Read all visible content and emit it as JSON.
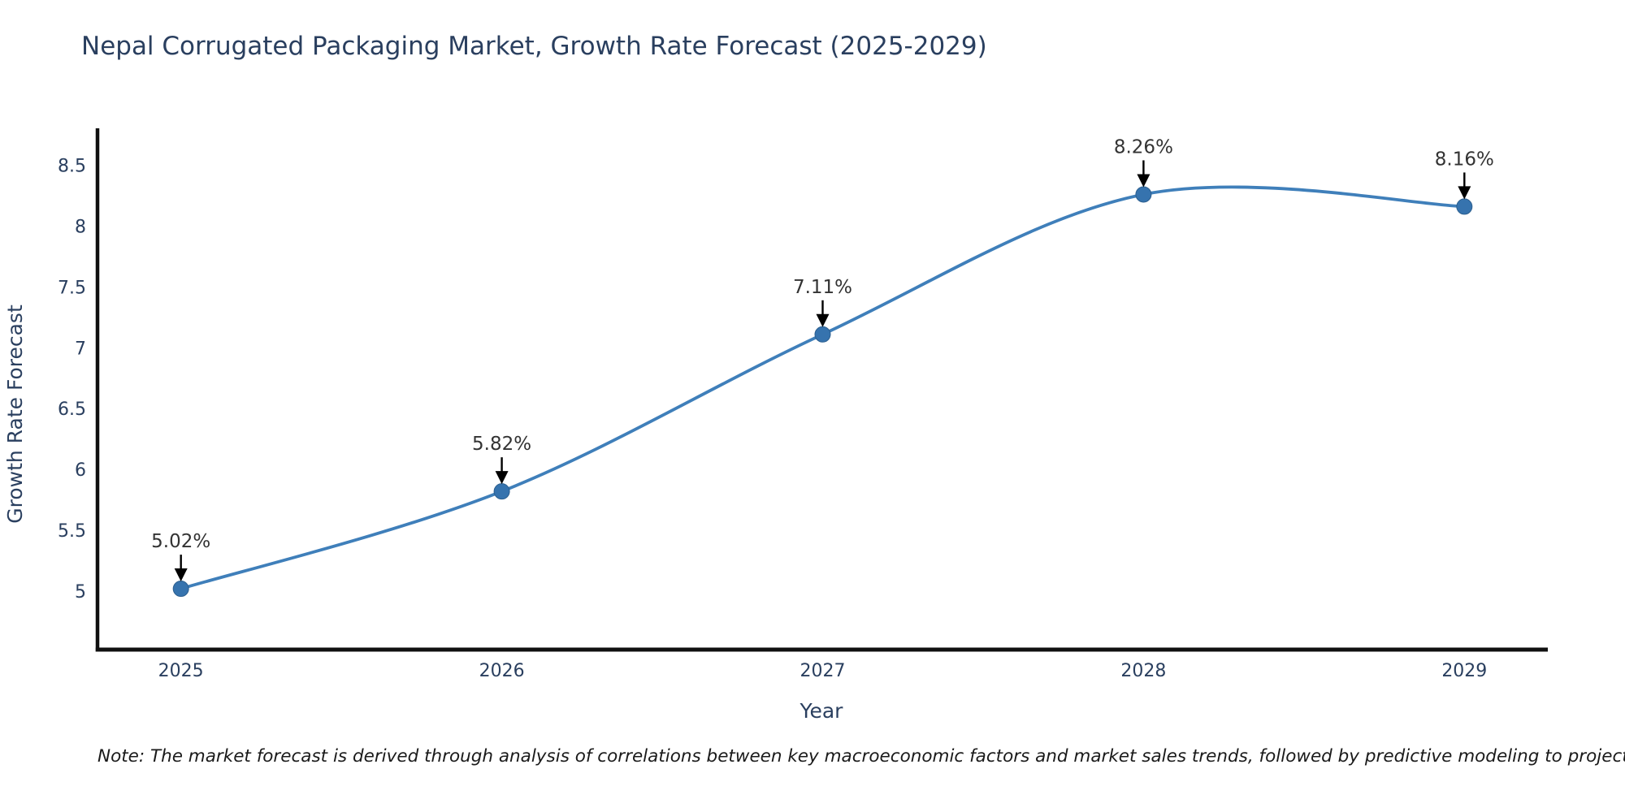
{
  "title": "Nepal Corrugated Packaging Market, Growth Rate Forecast (2025-2029)",
  "note": "Note: The market forecast is derived through analysis of correlations between key macroeconomic factors and market sales trends, followed by predictive modeling to project future sales",
  "chart_data": {
    "type": "line",
    "title": "Nepal Corrugated Packaging Market, Growth Rate Forecast (2025-2029)",
    "x": [
      2025,
      2026,
      2027,
      2028,
      2029
    ],
    "x_ticks": [
      "2025",
      "2026",
      "2027",
      "2028",
      "2029"
    ],
    "series": [
      {
        "name": "Growth Rate Forecast",
        "values": [
          5.02,
          5.82,
          7.11,
          8.26,
          8.16
        ]
      }
    ],
    "point_labels": [
      "5.02%",
      "5.82%",
      "7.11%",
      "8.26%",
      "8.16%"
    ],
    "xlabel": "Year",
    "ylabel": "Growth Rate Forecast",
    "y_ticks": [
      "8.5",
      "8",
      "7.5",
      "7",
      "6.5",
      "6",
      "5.5",
      "5"
    ],
    "y_tick_values": [
      8.5,
      8,
      7.5,
      7,
      6.5,
      6,
      5.5,
      5
    ],
    "ylim": [
      4.52,
      8.79
    ],
    "xlim": [
      2024.74,
      2029.26
    ],
    "line_shape": "spline",
    "grid": false,
    "legend": "none",
    "colors": {
      "line": "#3f7fba",
      "marker": "#3673ae",
      "marker_edge": "#2c5f8f",
      "axis": "#101010",
      "text": "#2a3f5f",
      "annotation": "#333333",
      "note": "#1a1a1a",
      "background": "#ffffff"
    }
  }
}
